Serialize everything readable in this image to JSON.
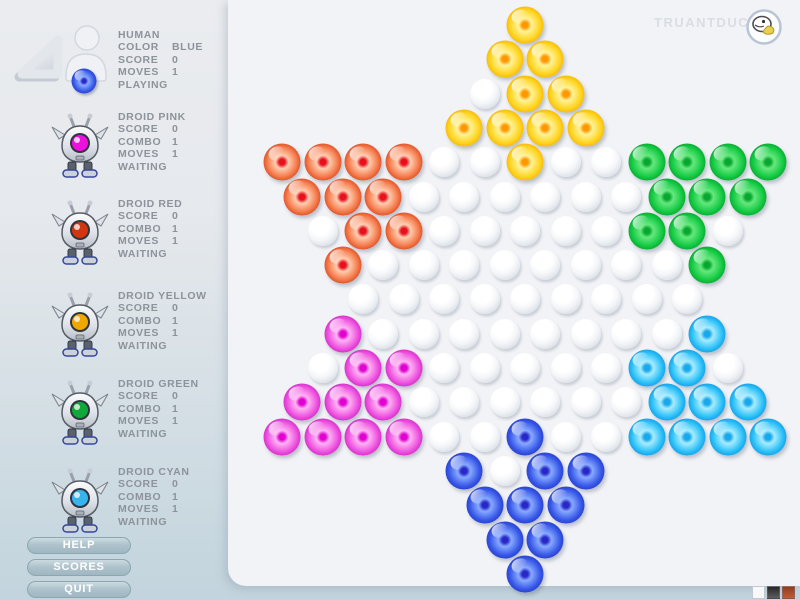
{
  "brand": {
    "name": "TRUANTDUCK"
  },
  "players": {
    "human": {
      "name": "HUMAN",
      "stats": [
        {
          "label": "COLOR",
          "value": "BLUE"
        },
        {
          "label": "SCORE",
          "value": "0"
        },
        {
          "label": "MOVES",
          "value": "1"
        }
      ],
      "status": "PLAYING",
      "marble": "blue"
    },
    "droids": [
      {
        "name": "DROID PINK",
        "eye": "#ee10dc",
        "marble": "magenta",
        "stats": [
          {
            "label": "SCORE",
            "value": "0"
          },
          {
            "label": "COMBO",
            "value": "1"
          },
          {
            "label": "MOVES",
            "value": "1"
          }
        ],
        "status": "WAITING"
      },
      {
        "name": "DROID RED",
        "eye": "#d23510",
        "marble": "red",
        "stats": [
          {
            "label": "SCORE",
            "value": "0"
          },
          {
            "label": "COMBO",
            "value": "1"
          },
          {
            "label": "MOVES",
            "value": "1"
          }
        ],
        "status": "WAITING"
      },
      {
        "name": "DROID YELLOW",
        "eye": "#f0a800",
        "marble": "yellow",
        "stats": [
          {
            "label": "SCORE",
            "value": "0"
          },
          {
            "label": "COMBO",
            "value": "1"
          },
          {
            "label": "MOVES",
            "value": "1"
          }
        ],
        "status": "WAITING"
      },
      {
        "name": "DROID GREEN",
        "eye": "#10a838",
        "marble": "green",
        "stats": [
          {
            "label": "SCORE",
            "value": "0"
          },
          {
            "label": "COMBO",
            "value": "1"
          },
          {
            "label": "MOVES",
            "value": "1"
          }
        ],
        "status": "WAITING"
      },
      {
        "name": "DROID CYAN",
        "eye": "#38b4ec",
        "marble": "cyan",
        "stats": [
          {
            "label": "SCORE",
            "value": "0"
          },
          {
            "label": "COMBO",
            "value": "1"
          },
          {
            "label": "MOVES",
            "value": "1"
          }
        ],
        "status": "WAITING"
      }
    ]
  },
  "menu": [
    {
      "id": "help",
      "label": "HELP"
    },
    {
      "id": "scores",
      "label": "SCORES"
    },
    {
      "id": "quit",
      "label": "QUIT"
    }
  ],
  "theme_swatches": [
    {
      "name": "light",
      "color": "#f6f8fa"
    },
    {
      "name": "dark",
      "color": "#3a3a3a"
    },
    {
      "name": "orange",
      "color": "#b2522d"
    }
  ],
  "board": {
    "row_counts": [
      1,
      2,
      3,
      4,
      13,
      12,
      11,
      10,
      9,
      10,
      11,
      12,
      13,
      4,
      3,
      2,
      1
    ],
    "palette": {
      "yellow": {
        "ring": "#c05000",
        "dark": "#f0a400",
        "mid": "#ffd41e",
        "light": "#fff39a",
        "dot": "#ff9800"
      },
      "red": {
        "ring": "#7c1008",
        "dark": "#cc3414",
        "mid": "#f47848",
        "light": "#ffcdb0",
        "dot": "#e8101c"
      },
      "green": {
        "ring": "#063c14",
        "dark": "#089028",
        "mid": "#12ca42",
        "light": "#66e87e",
        "dot": "#08a830"
      },
      "magenta": {
        "ring": "#62005e",
        "dark": "#c018b4",
        "mid": "#ee50e0",
        "light": "#ffb4f4",
        "dot": "#e000d0"
      },
      "cyan": {
        "ring": "#0c4c94",
        "dark": "#0c88d8",
        "mid": "#28c0f8",
        "light": "#a8ecff",
        "dot": "#18a8ec"
      },
      "blue": {
        "ring": "#141478",
        "dark": "#1c30b8",
        "mid": "#3858e8",
        "light": "#88aaff",
        "dot": "#2828c8"
      }
    },
    "marbles": {
      "yellow": [
        [
          1,
          0
        ],
        [
          2,
          -0.5
        ],
        [
          2,
          0.5
        ],
        [
          3,
          0
        ],
        [
          3,
          1
        ],
        [
          4,
          -1.5
        ],
        [
          4,
          -0.5
        ],
        [
          4,
          0.5
        ],
        [
          4,
          1.5
        ],
        [
          5,
          0
        ]
      ],
      "red": [
        [
          5,
          -6
        ],
        [
          5,
          -5
        ],
        [
          5,
          -4
        ],
        [
          5,
          -3
        ],
        [
          6,
          -5.5
        ],
        [
          6,
          -4.5
        ],
        [
          6,
          -3.5
        ],
        [
          7,
          -4
        ],
        [
          7,
          -3
        ],
        [
          8,
          -4.5
        ]
      ],
      "green": [
        [
          5,
          3
        ],
        [
          5,
          4
        ],
        [
          5,
          5
        ],
        [
          5,
          6
        ],
        [
          6,
          3.5
        ],
        [
          6,
          4.5
        ],
        [
          6,
          5.5
        ],
        [
          7,
          3
        ],
        [
          7,
          4
        ],
        [
          8,
          4.5
        ]
      ],
      "magenta": [
        [
          10,
          -4.5
        ],
        [
          11,
          -4
        ],
        [
          11,
          -3
        ],
        [
          12,
          -5.5
        ],
        [
          12,
          -4.5
        ],
        [
          12,
          -3.5
        ],
        [
          13,
          -6
        ],
        [
          13,
          -5
        ],
        [
          13,
          -4
        ],
        [
          13,
          -3
        ]
      ],
      "cyan": [
        [
          10,
          4.5
        ],
        [
          11,
          3
        ],
        [
          11,
          4
        ],
        [
          12,
          3.5
        ],
        [
          12,
          4.5
        ],
        [
          12,
          5.5
        ],
        [
          13,
          3
        ],
        [
          13,
          4
        ],
        [
          13,
          5
        ],
        [
          13,
          6
        ]
      ],
      "blue": [
        [
          13,
          0
        ],
        [
          14,
          -1.5
        ],
        [
          14,
          0.5
        ],
        [
          14,
          1.5
        ],
        [
          15,
          -1
        ],
        [
          15,
          0
        ],
        [
          15,
          1
        ],
        [
          16,
          -0.5
        ],
        [
          16,
          0.5
        ],
        [
          17,
          0
        ]
      ]
    }
  }
}
